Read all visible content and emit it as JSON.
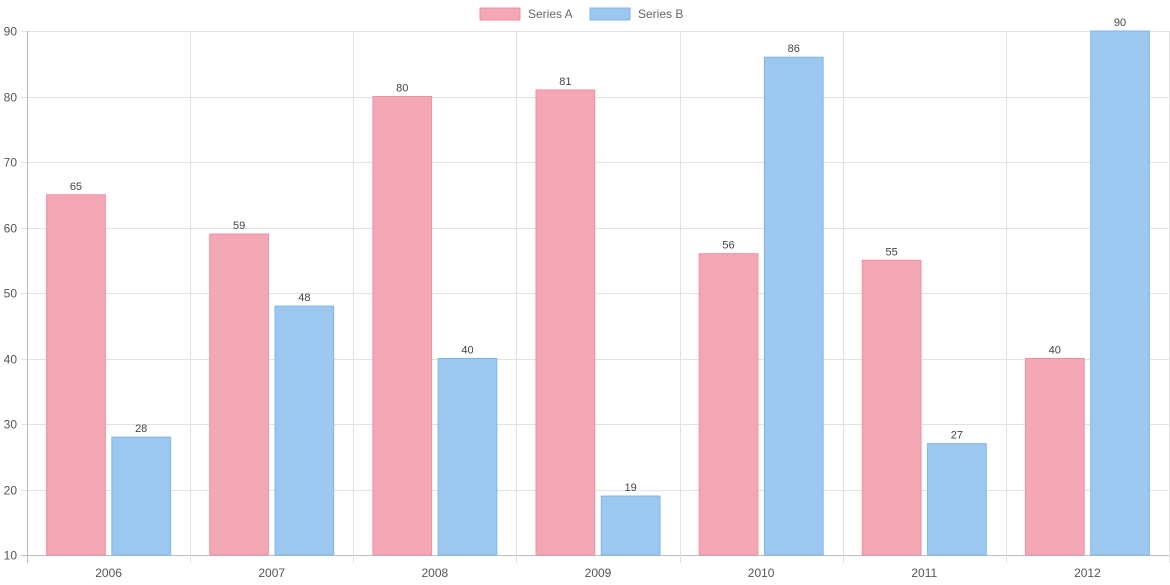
{
  "chart_data": {
    "type": "bar",
    "title": "",
    "xlabel": "",
    "ylabel": "",
    "categories": [
      "2006",
      "2007",
      "2008",
      "2009",
      "2010",
      "2011",
      "2012"
    ],
    "series": [
      {
        "name": "Series A",
        "values": [
          65,
          59,
          80,
          81,
          56,
          55,
          40
        ],
        "color": "#f4a7b4",
        "border": "#f08fa0"
      },
      {
        "name": "Series B",
        "values": [
          28,
          48,
          40,
          19,
          86,
          27,
          90
        ],
        "color": "#9cc8ef",
        "border": "#7fb6e8"
      }
    ],
    "ylim": [
      10,
      90
    ],
    "yticks": [
      10,
      20,
      30,
      40,
      50,
      60,
      70,
      80,
      90
    ],
    "grid": true,
    "legend_position": "top-center",
    "show_data_labels": true
  }
}
